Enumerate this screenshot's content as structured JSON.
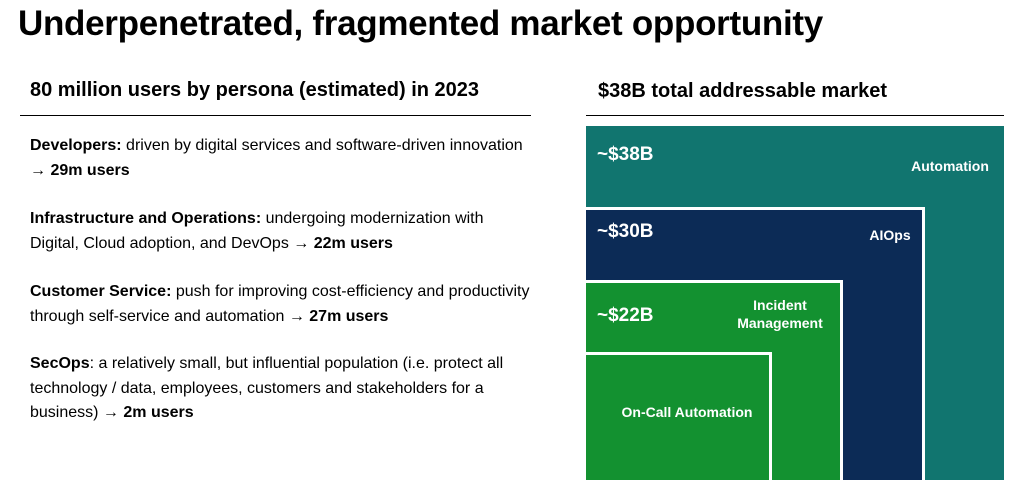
{
  "title": "Underpenetrated, fragmented market opportunity",
  "left_heading": "80 million users by persona (estimated) in 2023",
  "right_heading": "$38B total addressable market",
  "personas": [
    {
      "name": "Developers:",
      "description": " driven by digital services and software-driven innovation → ",
      "users": "29m users"
    },
    {
      "name": "Infrastructure and Operations:",
      "description": " undergoing modernization with Digital, Cloud adoption, and DevOps → ",
      "users": "22m users"
    },
    {
      "name": "Customer Service:",
      "description": " push for improving cost-efficiency and productivity through self-service and automation → ",
      "users": "27m users"
    },
    {
      "name": "SecOps",
      "description": ": a relatively small, but influential population (i.e. protect all technology / data, employees, customers and stakeholders for a business) → ",
      "users": "2m users"
    }
  ],
  "tam": {
    "segments": [
      {
        "amount": "~$38B",
        "label": "Automation",
        "color": "#11756f"
      },
      {
        "amount": "~$30B",
        "label": "AIOps",
        "color": "#0c2b56"
      },
      {
        "amount": "~$22B",
        "label_line1": "Incident",
        "label_line2": "Management",
        "color": "#139130"
      },
      {
        "label": "On-Call Automation",
        "color": "#139130"
      }
    ]
  }
}
